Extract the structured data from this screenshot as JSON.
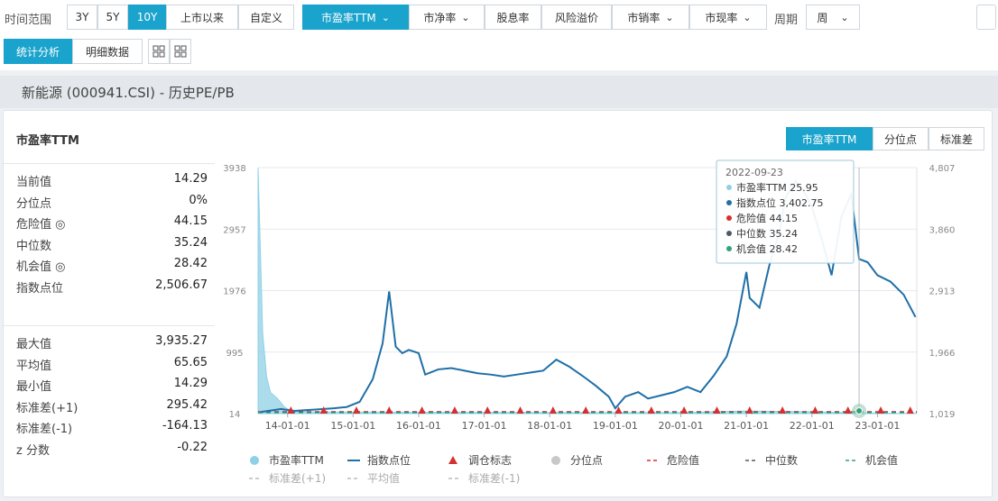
{
  "toolbar": {
    "range_label": "时间范围",
    "range_buttons": [
      "3Y",
      "5Y",
      "10Y",
      "上市以来",
      "自定义"
    ],
    "metric_tabs": [
      "市盈率TTM",
      "市净率",
      "股息率",
      "风险溢价",
      "市销率",
      "市现率"
    ],
    "period_label": "周期",
    "period_value": "周",
    "view_tabs": [
      "统计分析",
      "明细数据"
    ]
  },
  "page_title": "新能源 (000941.CSI) - 历史PE/PB",
  "card": {
    "title": "市盈率TTM",
    "segments": [
      "市盈率TTM",
      "分位点",
      "标准差"
    ]
  },
  "stats_top": [
    {
      "k": "当前值",
      "v": "14.29"
    },
    {
      "k": "分位点",
      "v": "0%"
    },
    {
      "k": "危险值 ◎",
      "v": "44.15"
    },
    {
      "k": "中位数",
      "v": "35.24"
    },
    {
      "k": "机会值 ◎",
      "v": "28.42"
    },
    {
      "k": "指数点位",
      "v": "2,506.67"
    }
  ],
  "stats_bottom": [
    {
      "k": "最大值",
      "v": "3,935.27"
    },
    {
      "k": "平均值",
      "v": "65.65"
    },
    {
      "k": "最小值",
      "v": "14.29"
    },
    {
      "k": "标准差(+1)",
      "v": "295.42"
    },
    {
      "k": "标准差(-1)",
      "v": "-164.13"
    },
    {
      "k": "z 分数",
      "v": "-0.22"
    }
  ],
  "tooltip": {
    "date": "2022-09-23",
    "rows": [
      {
        "label": "市盈率TTM",
        "value": "25.95",
        "color": "#8fd0e6"
      },
      {
        "label": "指数点位",
        "value": "3,402.75",
        "color": "#1f6fa8"
      },
      {
        "label": "危险值",
        "value": "44.15",
        "color": "#d43030"
      },
      {
        "label": "中位数",
        "value": "35.24",
        "color": "#4a5a6a"
      },
      {
        "label": "机会值",
        "value": "28.42",
        "color": "#2fa37a"
      }
    ]
  },
  "legend": {
    "row1": [
      {
        "label": "市盈率TTM",
        "kind": "dot",
        "color": "#8fd0e6"
      },
      {
        "label": "指数点位",
        "kind": "line",
        "color": "#1f6fa8"
      },
      {
        "label": "调仓标志",
        "kind": "triangle",
        "color": "#d43030"
      },
      {
        "label": "分位点",
        "kind": "dot",
        "color": "#c8c8c8"
      },
      {
        "label": "危险值",
        "kind": "dash",
        "color": "#d43030"
      },
      {
        "label": "中位数",
        "kind": "dash",
        "color": "#4a5a6a"
      },
      {
        "label": "机会值",
        "kind": "dash",
        "color": "#2fa37a"
      }
    ],
    "row2": [
      {
        "label": "标准差(+1)",
        "kind": "dash",
        "color": "#bbbbbb"
      },
      {
        "label": "平均值",
        "kind": "dash",
        "color": "#bbbbbb"
      },
      {
        "label": "标准差(-1)",
        "kind": "dash",
        "color": "#bbbbbb"
      }
    ]
  },
  "chart_data": {
    "type": "line",
    "title": "市盈率TTM",
    "x_tick_labels": [
      "14-01-01",
      "15-01-01",
      "16-01-01",
      "17-01-01",
      "18-01-01",
      "19-01-01",
      "20-01-01",
      "21-01-01",
      "22-01-01",
      "23-01-01"
    ],
    "x_range": [
      2013.55,
      2023.6
    ],
    "y_left": {
      "ticks": [
        14,
        995,
        1976,
        2957,
        3938
      ],
      "range": [
        14,
        3938
      ],
      "tick_labels": [
        "14",
        "995",
        "1976",
        "2957",
        "3938"
      ]
    },
    "y_right": {
      "ticks": [
        1019,
        1966,
        2913,
        3860,
        4807
      ],
      "range": [
        1019,
        4807
      ],
      "tick_labels": [
        "1,019",
        "1,966",
        "2,913",
        "3,860",
        "4,807"
      ]
    },
    "grid": true,
    "legend_position": "bottom",
    "series": [
      {
        "name": "指数点位",
        "axis": "right",
        "color": "#1f6fa8",
        "points": [
          [
            2013.6,
            1045
          ],
          [
            2013.9,
            1090
          ],
          [
            2014.1,
            1060
          ],
          [
            2014.4,
            1080
          ],
          [
            2014.7,
            1100
          ],
          [
            2014.9,
            1120
          ],
          [
            2015.1,
            1200
          ],
          [
            2015.3,
            1550
          ],
          [
            2015.45,
            2100
          ],
          [
            2015.55,
            2900
          ],
          [
            2015.65,
            2050
          ],
          [
            2015.75,
            1950
          ],
          [
            2015.85,
            2000
          ],
          [
            2016.0,
            1950
          ],
          [
            2016.1,
            1620
          ],
          [
            2016.3,
            1700
          ],
          [
            2016.5,
            1720
          ],
          [
            2016.7,
            1680
          ],
          [
            2016.9,
            1640
          ],
          [
            2017.1,
            1620
          ],
          [
            2017.3,
            1590
          ],
          [
            2017.5,
            1620
          ],
          [
            2017.7,
            1650
          ],
          [
            2017.9,
            1680
          ],
          [
            2018.1,
            1850
          ],
          [
            2018.3,
            1740
          ],
          [
            2018.5,
            1600
          ],
          [
            2018.7,
            1450
          ],
          [
            2018.9,
            1280
          ],
          [
            2019.0,
            1100
          ],
          [
            2019.15,
            1280
          ],
          [
            2019.35,
            1350
          ],
          [
            2019.5,
            1250
          ],
          [
            2019.7,
            1300
          ],
          [
            2019.9,
            1350
          ],
          [
            2020.1,
            1430
          ],
          [
            2020.3,
            1350
          ],
          [
            2020.5,
            1600
          ],
          [
            2020.7,
            1900
          ],
          [
            2020.85,
            2400
          ],
          [
            2021.0,
            3200
          ],
          [
            2021.05,
            2800
          ],
          [
            2021.2,
            2650
          ],
          [
            2021.35,
            3300
          ],
          [
            2021.5,
            3800
          ],
          [
            2021.6,
            4350
          ],
          [
            2021.75,
            4600
          ],
          [
            2021.9,
            4400
          ],
          [
            2022.0,
            4200
          ],
          [
            2022.15,
            3700
          ],
          [
            2022.3,
            3150
          ],
          [
            2022.45,
            4050
          ],
          [
            2022.6,
            4400
          ],
          [
            2022.72,
            3400
          ],
          [
            2022.85,
            3350
          ],
          [
            2023.0,
            3150
          ],
          [
            2023.2,
            3050
          ],
          [
            2023.4,
            2850
          ],
          [
            2023.58,
            2506
          ]
        ]
      },
      {
        "name": "市盈率TTM",
        "axis": "left",
        "color": "#8fd0e6",
        "points": [
          [
            2013.55,
            3935
          ],
          [
            2013.62,
            1300
          ],
          [
            2013.68,
            600
          ],
          [
            2013.74,
            350
          ],
          [
            2013.85,
            250
          ],
          [
            2013.95,
            120
          ],
          [
            2014.05,
            60
          ],
          [
            2014.2,
            45
          ],
          [
            2014.5,
            40
          ],
          [
            2015.0,
            38
          ],
          [
            2016.0,
            36
          ],
          [
            2017.0,
            34
          ],
          [
            2018.0,
            32
          ],
          [
            2019.0,
            30
          ],
          [
            2020.0,
            32
          ],
          [
            2021.0,
            55
          ],
          [
            2022.0,
            42
          ],
          [
            2022.72,
            26
          ],
          [
            2023.58,
            14
          ]
        ]
      },
      {
        "name": "危险值",
        "axis": "left",
        "value": 44.15,
        "color": "#d43030"
      },
      {
        "name": "中位数",
        "axis": "left",
        "value": 35.24,
        "color": "#4a5a6a"
      },
      {
        "name": "机会值",
        "axis": "left",
        "value": 28.42,
        "color": "#2fa37a"
      }
    ],
    "rebalance_markers_x": [
      2014.05,
      2014.55,
      2015.05,
      2015.55,
      2016.05,
      2016.55,
      2017.05,
      2017.55,
      2018.05,
      2018.55,
      2019.05,
      2019.55,
      2020.05,
      2020.55,
      2021.05,
      2021.55,
      2022.05,
      2022.55,
      2023.05,
      2023.5
    ],
    "highlight_x": 2022.72
  }
}
